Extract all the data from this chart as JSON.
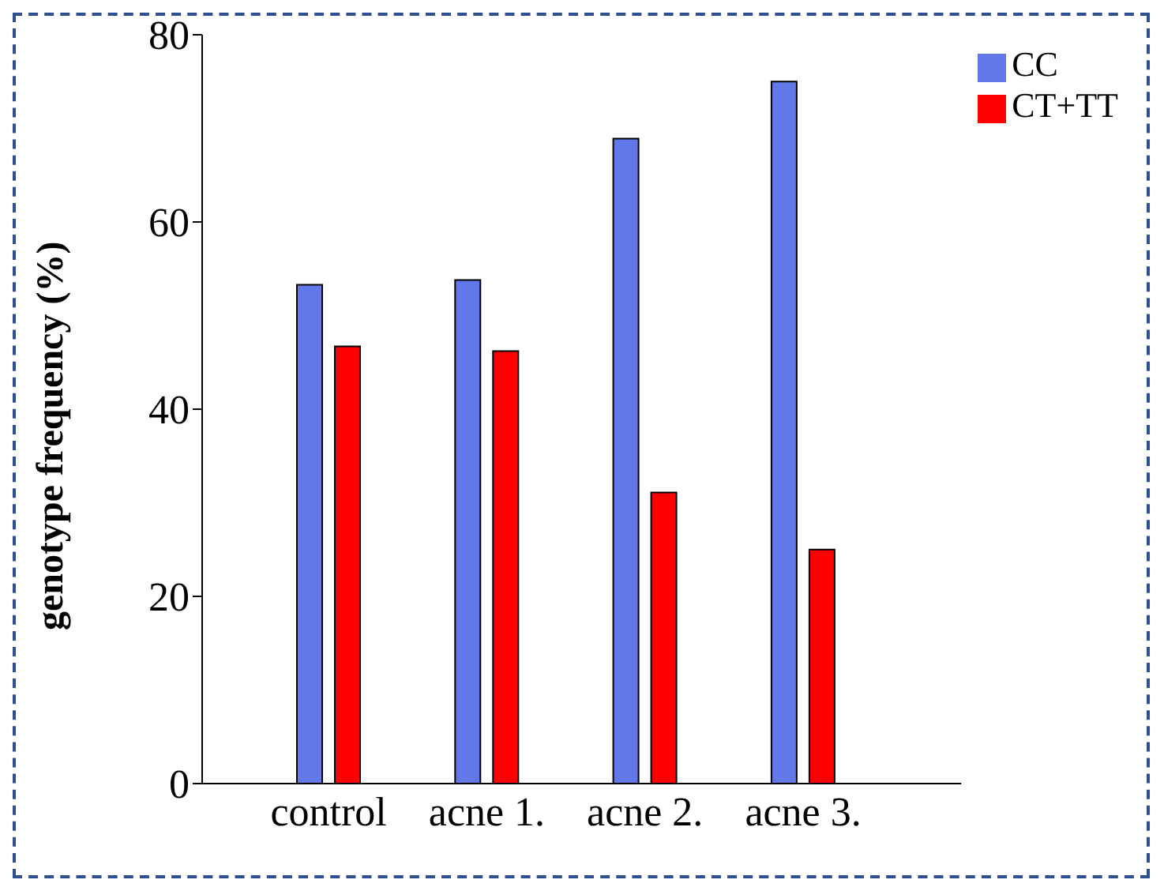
{
  "chart_data": {
    "type": "bar",
    "ylabel": "genotype frequency (%)",
    "categories": [
      "control",
      "acne 1.",
      "acne 2.",
      "acne 3."
    ],
    "series": [
      {
        "name": "CC",
        "color": "#6378e8",
        "values": [
          53.3,
          53.8,
          68.9,
          75.0
        ]
      },
      {
        "name": "CT+TT",
        "color": "#ff0000",
        "values": [
          46.7,
          46.2,
          31.1,
          25.0
        ]
      }
    ],
    "ylim": [
      0,
      80
    ],
    "yticks": [
      0,
      20,
      40,
      60,
      80
    ],
    "grid": false,
    "legend": "top right"
  }
}
